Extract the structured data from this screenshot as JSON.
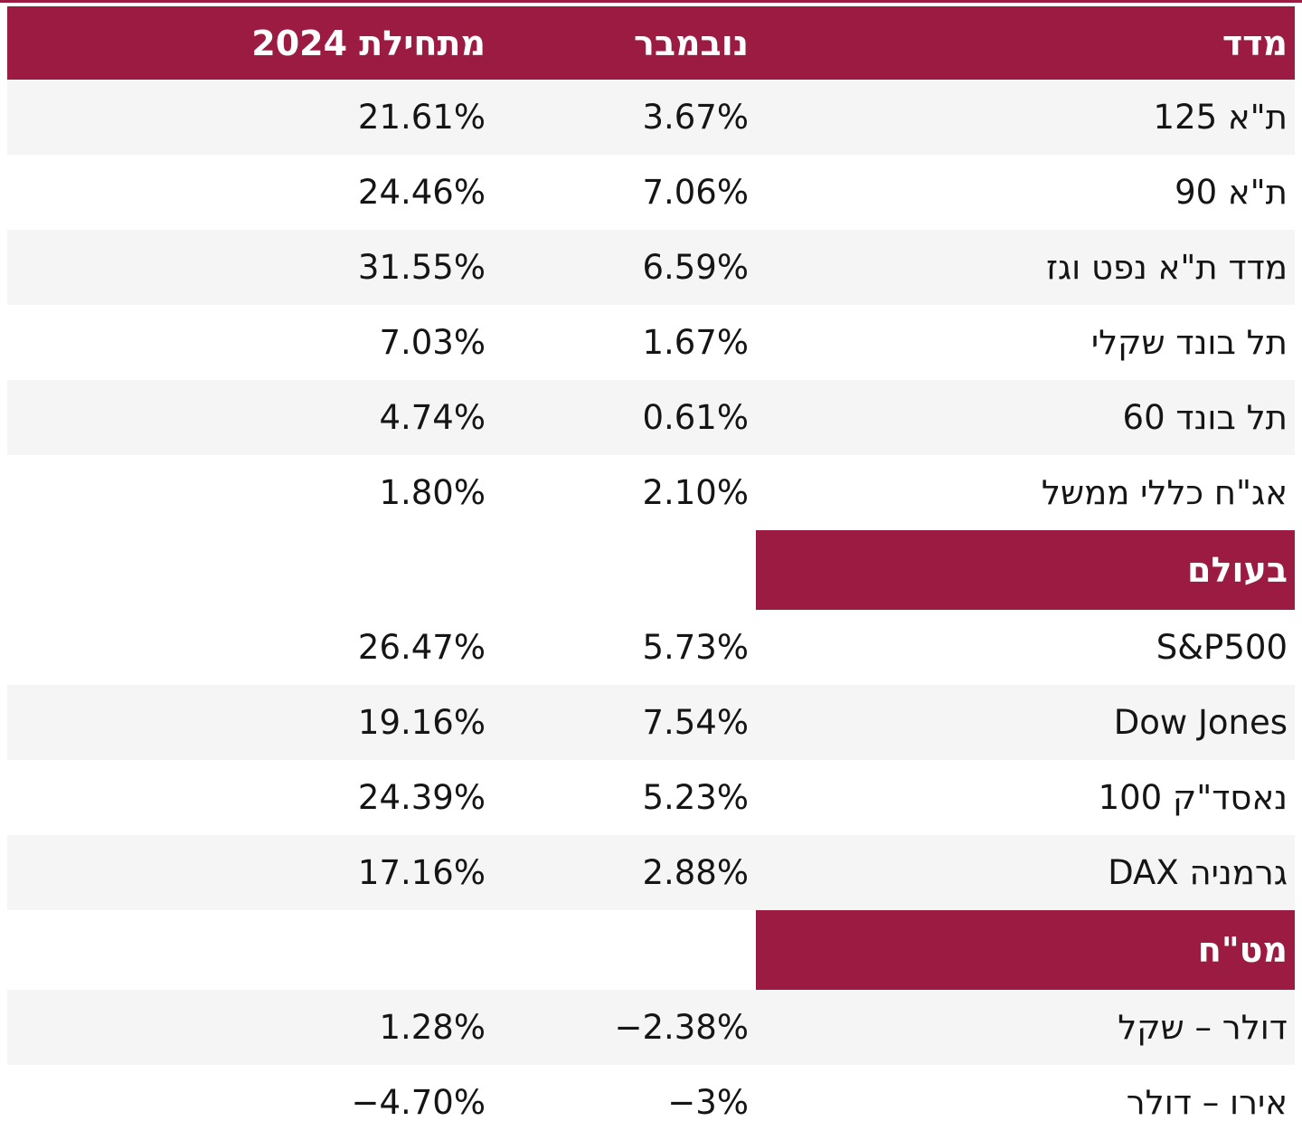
{
  "colors": {
    "accent": "#9B1B42",
    "row_alt": "#F5F5F6",
    "text": "#151515",
    "header_text": "#FFFFFF"
  },
  "table": {
    "header": {
      "index": "מדד",
      "november": "נובמבר",
      "ytd": "מתחילת 2024"
    },
    "sections": [
      {
        "rows": [
          {
            "label": "ת\"א 125",
            "november": "3.67%",
            "ytd": "21.61%"
          },
          {
            "label": "ת\"א 90",
            "november": "7.06%",
            "ytd": "24.46%"
          },
          {
            "label": "מדד ת\"א נפט וגז",
            "november": "6.59%",
            "ytd": "31.55%"
          },
          {
            "label": "תל בונד שקלי",
            "november": "1.67%",
            "ytd": "7.03%"
          },
          {
            "label": "תל בונד 60",
            "november": "0.61%",
            "ytd": "4.74%"
          },
          {
            "label": "אג\"ח כללי ממשל",
            "november": "2.10%",
            "ytd": "1.80%"
          }
        ]
      },
      {
        "title": "בעולם",
        "rows": [
          {
            "label": "S&P500",
            "november": "5.73%",
            "ytd": "26.47%"
          },
          {
            "label": "Dow Jones",
            "november": "7.54%",
            "ytd": "19.16%"
          },
          {
            "label": "נאסד\"ק 100",
            "november": "5.23%",
            "ytd": "24.39%"
          },
          {
            "label": "גרמניה DAX",
            "november": "2.88%",
            "ytd": "17.16%"
          }
        ]
      },
      {
        "title": "מט\"ח",
        "rows": [
          {
            "label": "דולר – שקל",
            "november": "−2.38%",
            "ytd": "1.28%"
          },
          {
            "label": "אירו – דולר",
            "november": "−3%",
            "ytd": "−4.70%"
          }
        ]
      }
    ]
  }
}
